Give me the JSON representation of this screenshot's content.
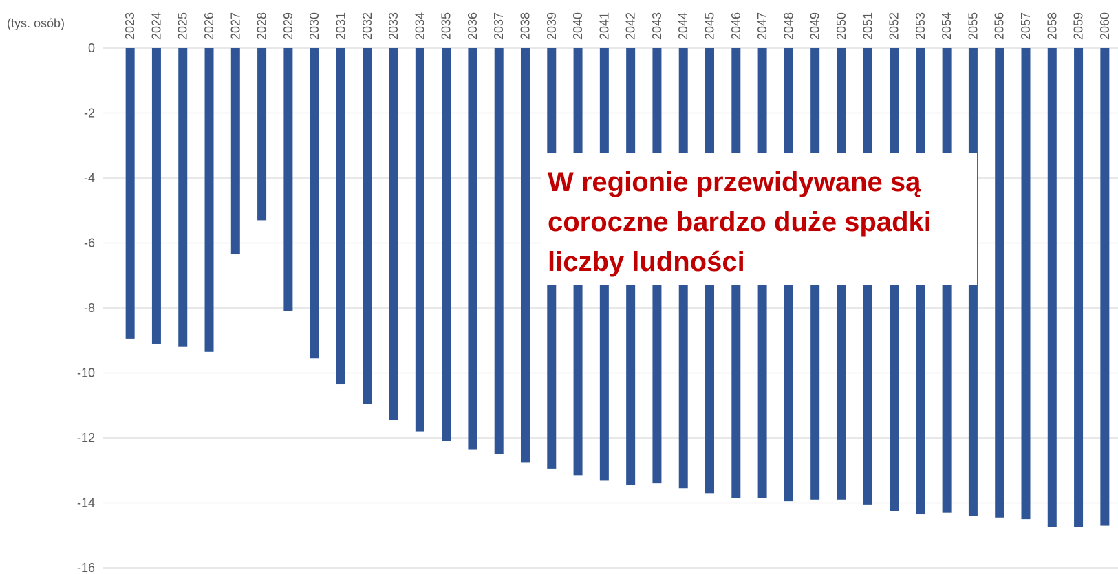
{
  "chart_data": {
    "type": "bar",
    "unit_label": "(tys. osób)",
    "annotation": {
      "lines": [
        "W regionie przewidywane są",
        "coroczne bardzo duże spadki",
        "liczby ludności"
      ],
      "color": "#c00000"
    },
    "categories": [
      "2023",
      "2024",
      "2025",
      "2026",
      "2027",
      "2028",
      "2029",
      "2030",
      "2031",
      "2032",
      "2033",
      "2034",
      "2035",
      "2036",
      "2037",
      "2038",
      "2039",
      "2040",
      "2041",
      "2042",
      "2043",
      "2044",
      "2045",
      "2046",
      "2047",
      "2048",
      "2049",
      "2050",
      "2051",
      "2052",
      "2053",
      "2054",
      "2055",
      "2056",
      "2057",
      "2058",
      "2059",
      "2060"
    ],
    "values": [
      -8.95,
      -9.1,
      -9.2,
      -9.35,
      -6.35,
      -5.3,
      -8.1,
      -9.55,
      -10.35,
      -10.95,
      -11.45,
      -11.8,
      -12.1,
      -12.35,
      -12.5,
      -12.75,
      -12.95,
      -13.15,
      -13.3,
      -13.45,
      -13.4,
      -13.55,
      -13.7,
      -13.85,
      -13.85,
      -13.95,
      -13.9,
      -13.9,
      -14.05,
      -14.25,
      -14.35,
      -14.3,
      -14.4,
      -14.45,
      -14.5,
      -14.75,
      -14.75,
      -14.7
    ],
    "color": "#2f5597",
    "ylim": [
      -16,
      0
    ],
    "yticks": [
      0,
      -2,
      -4,
      -6,
      -8,
      -10,
      -12,
      -14,
      -16
    ],
    "grid": true
  }
}
